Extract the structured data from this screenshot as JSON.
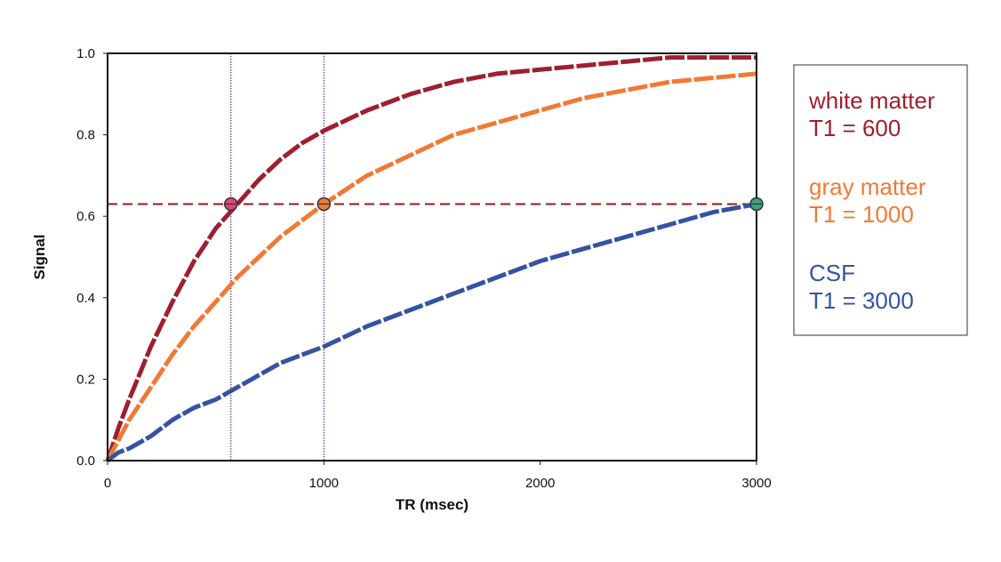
{
  "chart_data": {
    "type": "line",
    "title": "",
    "xlabel": "TR (msec)",
    "ylabel": "Signal",
    "xlim": [
      0,
      3000
    ],
    "ylim": [
      0,
      1.0
    ],
    "xticks": [
      0,
      1000,
      2000,
      3000
    ],
    "xtick_labels": [
      "0",
      "1000",
      "2000",
      "3000"
    ],
    "yticks": [
      0,
      0.2,
      0.4,
      0.6,
      0.8,
      1.0
    ],
    "ytick_labels": [
      "0.0",
      "0.2",
      "0.4",
      "0.6",
      "0.8",
      "1.0"
    ],
    "grid": false,
    "legend_position": "right",
    "x": [
      0,
      50,
      100,
      200,
      300,
      400,
      500,
      600,
      700,
      800,
      900,
      1000,
      1200,
      1400,
      1600,
      1800,
      2000,
      2200,
      2400,
      2600,
      2800,
      3000
    ],
    "series": [
      {
        "name": "white matter",
        "subtitle": "T1 = 600",
        "color": "#9e1f2f",
        "values": [
          0,
          0.08,
          0.15,
          0.28,
          0.39,
          0.49,
          0.57,
          0.63,
          0.69,
          0.74,
          0.78,
          0.81,
          0.86,
          0.9,
          0.93,
          0.95,
          0.96,
          0.97,
          0.98,
          0.99,
          0.99,
          0.99
        ]
      },
      {
        "name": "gray matter",
        "subtitle": "T1 = 1000",
        "color": "#f07a35",
        "values": [
          0,
          0.05,
          0.1,
          0.18,
          0.26,
          0.33,
          0.39,
          0.45,
          0.5,
          0.55,
          0.59,
          0.63,
          0.7,
          0.75,
          0.8,
          0.83,
          0.86,
          0.89,
          0.91,
          0.93,
          0.94,
          0.95
        ]
      },
      {
        "name": "CSF",
        "subtitle": "T1 = 3000",
        "color": "#3553a2",
        "values": [
          0,
          0.02,
          0.03,
          0.06,
          0.1,
          0.13,
          0.15,
          0.18,
          0.21,
          0.24,
          0.26,
          0.28,
          0.33,
          0.37,
          0.41,
          0.45,
          0.49,
          0.52,
          0.55,
          0.58,
          0.61,
          0.63
        ]
      }
    ],
    "reference_lines": [
      {
        "type": "horizontal",
        "y": 0.63,
        "color": "#8b1d1d",
        "style": "dashed"
      },
      {
        "type": "vertical",
        "x": 570,
        "color": "#7a3d8f",
        "style": "dotted"
      },
      {
        "type": "vertical",
        "x": 1000,
        "color": "#7a3d8f",
        "style": "dotted"
      }
    ],
    "markers": [
      {
        "x": 570,
        "y": 0.63,
        "color": "#e0447a"
      },
      {
        "x": 1000,
        "y": 0.63,
        "color": "#f07a35"
      },
      {
        "x": 3000,
        "y": 0.63,
        "color": "#3aa37f"
      }
    ]
  }
}
